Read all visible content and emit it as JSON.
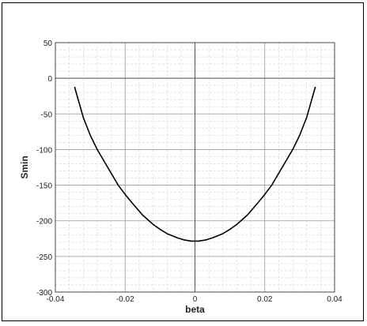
{
  "chart_data": {
    "type": "line",
    "title": "",
    "xlabel": "beta",
    "ylabel": "Smin",
    "xlim": [
      -0.04,
      0.04
    ],
    "ylim": [
      -300,
      50
    ],
    "x_ticks": [
      -0.04,
      -0.02,
      0,
      0.02,
      0.04
    ],
    "x_tick_labels": [
      "-0.04",
      "-0.02",
      "0",
      "0.02",
      "0.04"
    ],
    "y_ticks": [
      50,
      0,
      -50,
      -100,
      -150,
      -200,
      -250,
      -300
    ],
    "y_tick_labels": [
      "50",
      "0",
      "-50",
      "-100",
      "-150",
      "-200",
      "-250",
      "-300"
    ],
    "grid": true,
    "minor_grid": true,
    "series": [
      {
        "name": "",
        "color": "#000000",
        "x": [
          -0.0345,
          -0.032,
          -0.03,
          -0.028,
          -0.025,
          -0.022,
          -0.02,
          -0.018,
          -0.015,
          -0.012,
          -0.01,
          -0.008,
          -0.005,
          -0.003,
          -0.001,
          0.001,
          0.003,
          0.005,
          0.008,
          0.01,
          0.012,
          0.015,
          0.018,
          0.02,
          0.022,
          0.025,
          0.028,
          0.03,
          0.032,
          0.0345
        ],
        "y": [
          -12,
          -55,
          -80,
          -100,
          -125,
          -150,
          -163,
          -175,
          -192,
          -205,
          -212,
          -218,
          -224,
          -227,
          -228.5,
          -228.5,
          -227,
          -224,
          -218,
          -212,
          -205,
          -192,
          -175,
          -163,
          -150,
          -125,
          -100,
          -80,
          -55,
          -12
        ]
      }
    ]
  }
}
